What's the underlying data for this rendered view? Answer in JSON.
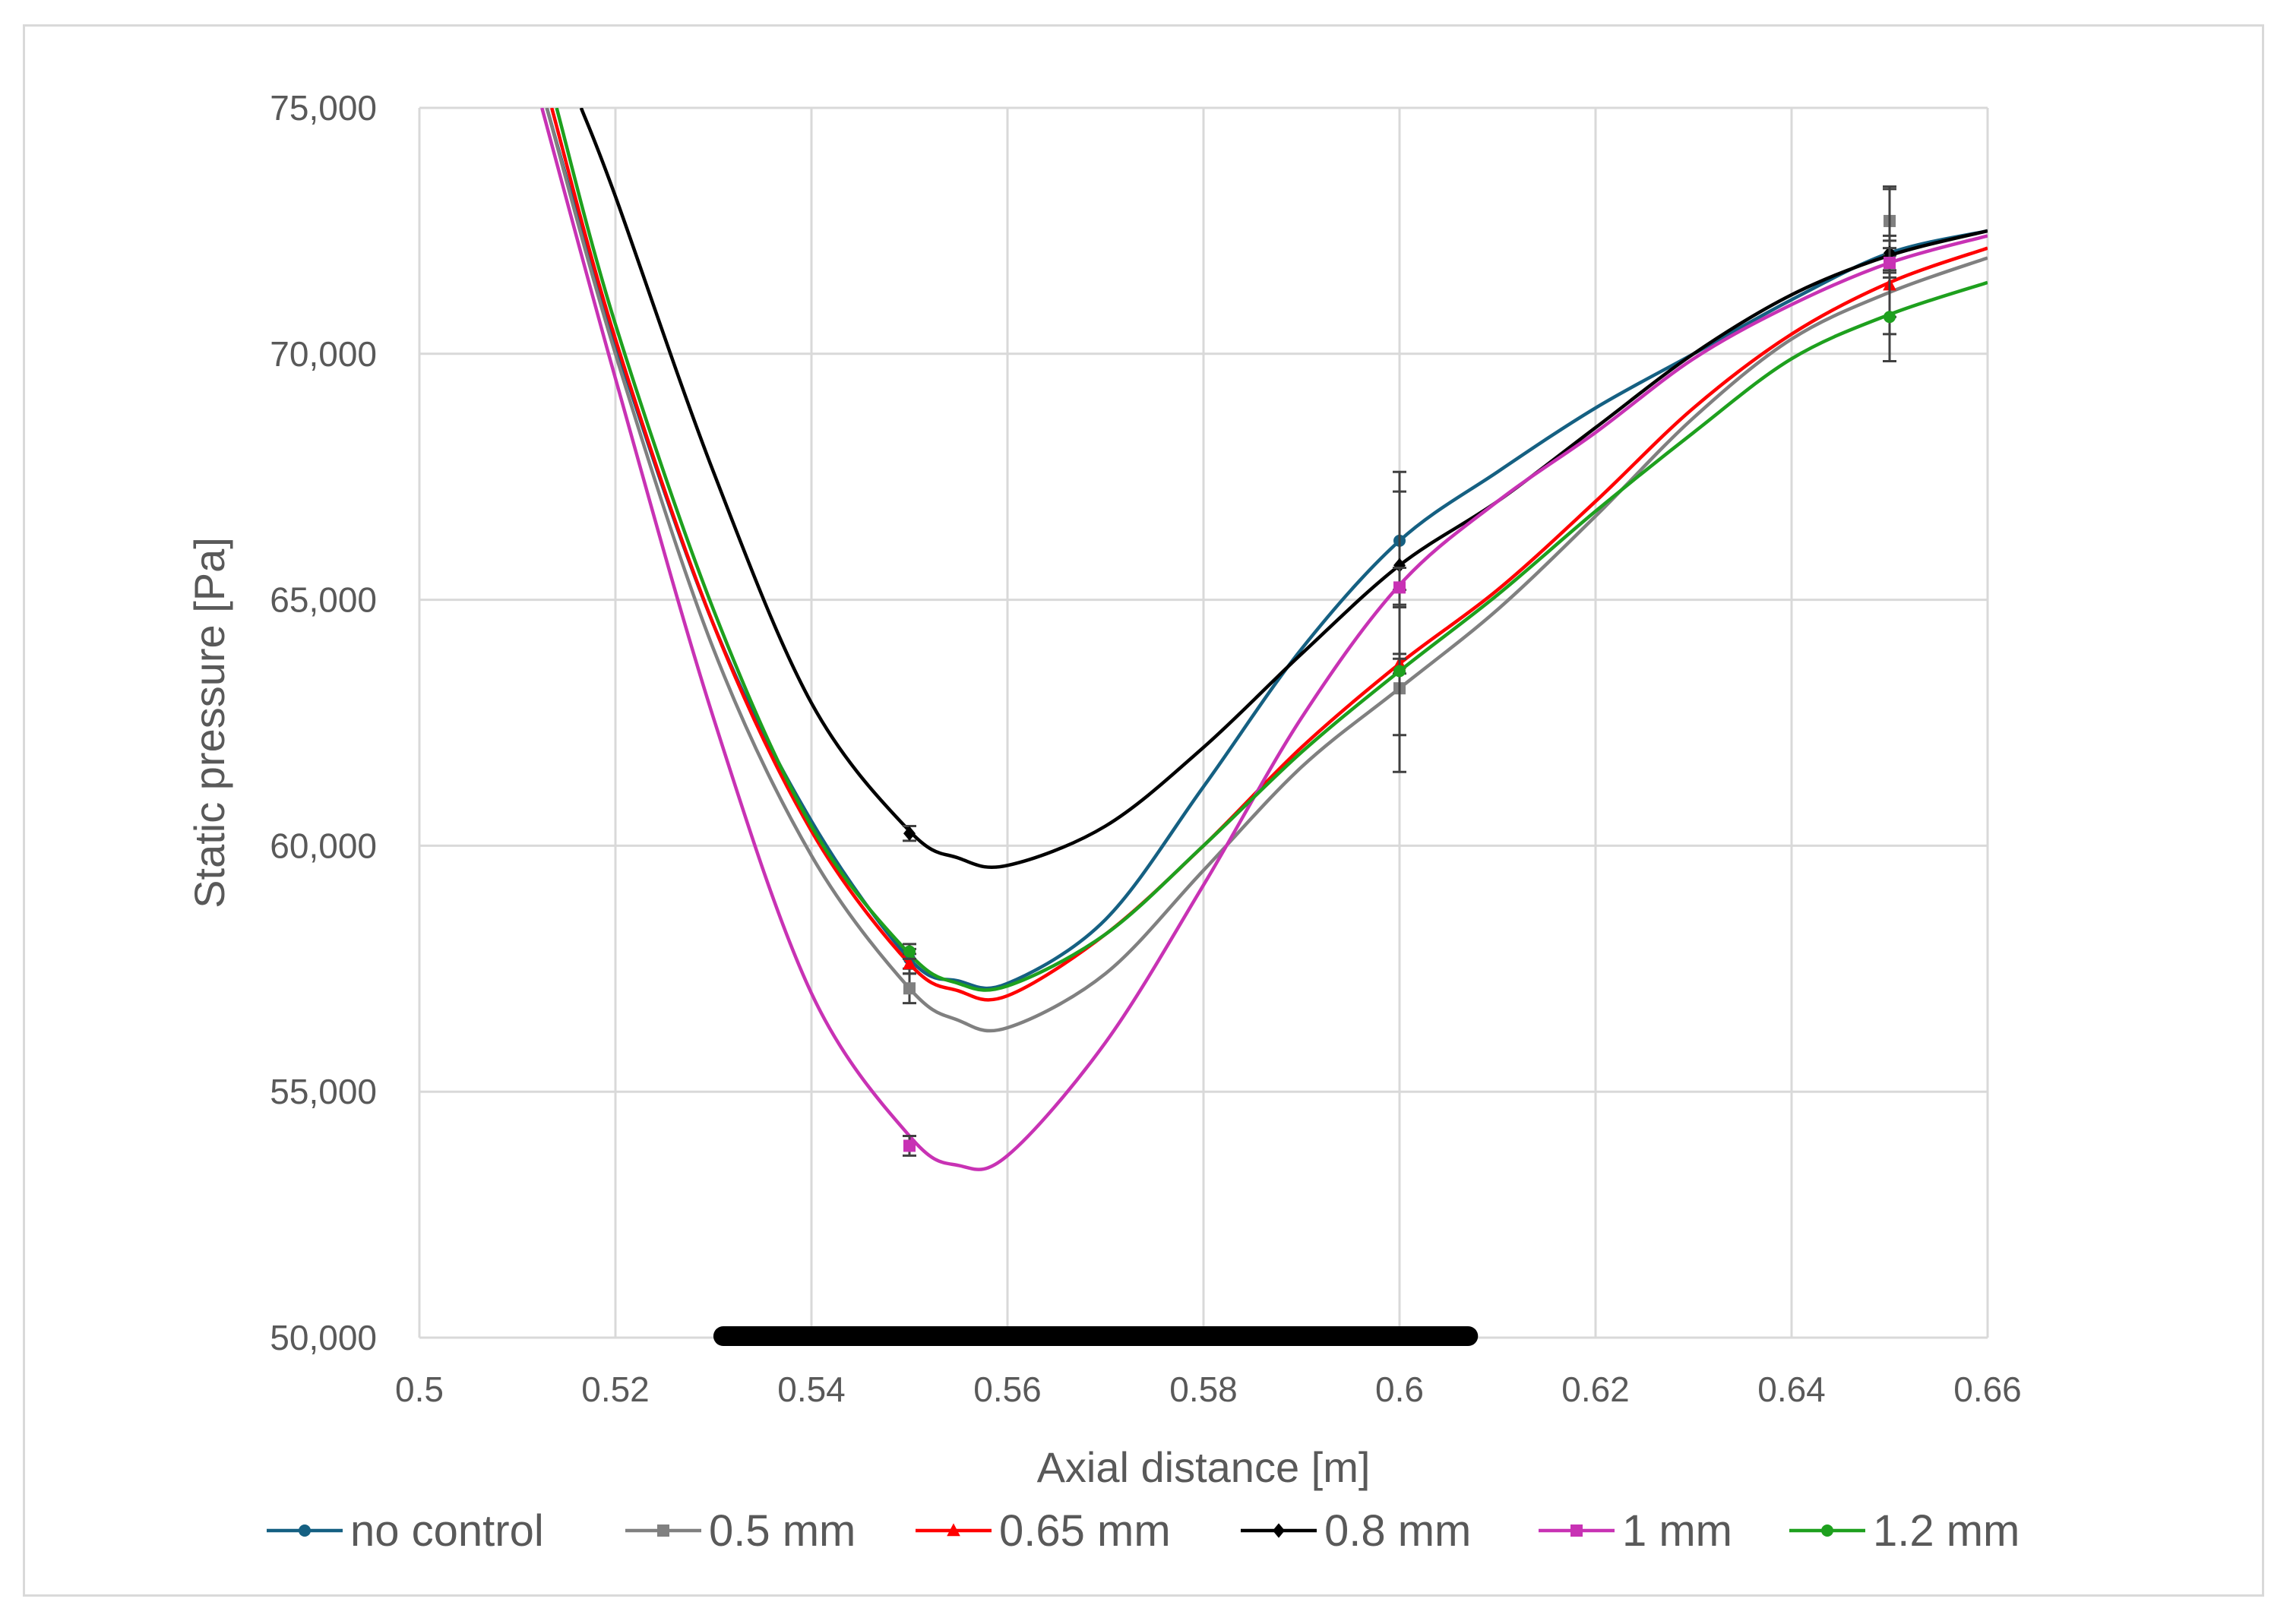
{
  "chart_data": {
    "type": "line",
    "xlabel": "Axial distance [m]",
    "ylabel": "Static pressure [Pa]",
    "xlim": [
      0.5,
      0.66
    ],
    "ylim": [
      50000,
      75000
    ],
    "grid": true,
    "legend_position": "bottom",
    "x_ticks": [
      0.5,
      0.52,
      0.54,
      0.56,
      0.58,
      0.6,
      0.62,
      0.64,
      0.66
    ],
    "x_tick_labels": [
      "0.5",
      "0.52",
      "0.54",
      "0.56",
      "0.58",
      "0.6",
      "0.62",
      "0.64",
      "0.66"
    ],
    "y_ticks": [
      50000,
      55000,
      60000,
      65000,
      70000,
      75000
    ],
    "y_tick_labels": [
      "50,000",
      "55,000",
      "60,000",
      "65,000",
      "70,000",
      "75,000"
    ],
    "highlight_band": {
      "x_start": 0.531,
      "x_end": 0.607,
      "y": 50000,
      "color": "#000000"
    },
    "series": [
      {
        "name": "no control",
        "color": "#156082",
        "marker": "circle",
        "curve": [
          [
            0.513,
            75000
          ],
          [
            0.52,
            70200
          ],
          [
            0.53,
            64500
          ],
          [
            0.54,
            60500
          ],
          [
            0.55,
            57700
          ],
          [
            0.555,
            57250
          ],
          [
            0.56,
            57200
          ],
          [
            0.57,
            58500
          ],
          [
            0.58,
            61200
          ],
          [
            0.59,
            64000
          ],
          [
            0.6,
            66200
          ],
          [
            0.61,
            67600
          ],
          [
            0.62,
            68900
          ],
          [
            0.63,
            70000
          ],
          [
            0.64,
            71100
          ],
          [
            0.65,
            72050
          ],
          [
            0.66,
            72500
          ]
        ],
        "points": [
          {
            "x": 0.55,
            "y": 57700,
            "err": 200
          },
          {
            "x": 0.6,
            "y": 66200,
            "err": 1000
          },
          {
            "x": 0.65,
            "y": 72000,
            "err": 300
          }
        ]
      },
      {
        "name": "0.5 mm",
        "color": "#808080",
        "marker": "square",
        "curve": [
          [
            0.513,
            75000
          ],
          [
            0.52,
            70000
          ],
          [
            0.53,
            64000
          ],
          [
            0.54,
            59800
          ],
          [
            0.55,
            57100
          ],
          [
            0.555,
            56450
          ],
          [
            0.56,
            56300
          ],
          [
            0.57,
            57400
          ],
          [
            0.58,
            59500
          ],
          [
            0.59,
            61600
          ],
          [
            0.6,
            63200
          ],
          [
            0.61,
            64800
          ],
          [
            0.62,
            66700
          ],
          [
            0.63,
            68700
          ],
          [
            0.64,
            70300
          ],
          [
            0.65,
            71250
          ],
          [
            0.66,
            71950
          ]
        ],
        "points": [
          {
            "x": 0.55,
            "y": 57100,
            "err": 300
          },
          {
            "x": 0.6,
            "y": 63200,
            "err": 1700
          },
          {
            "x": 0.65,
            "y": 72700,
            "err": 700
          }
        ]
      },
      {
        "name": "0.65 mm",
        "color": "#ff0000",
        "marker": "triangle",
        "curve": [
          [
            0.5135,
            75000
          ],
          [
            0.52,
            70300
          ],
          [
            0.53,
            64500
          ],
          [
            0.54,
            60300
          ],
          [
            0.55,
            57600
          ],
          [
            0.555,
            57050
          ],
          [
            0.56,
            56950
          ],
          [
            0.57,
            58200
          ],
          [
            0.58,
            60000
          ],
          [
            0.59,
            62000
          ],
          [
            0.6,
            63700
          ],
          [
            0.61,
            65200
          ],
          [
            0.62,
            67000
          ],
          [
            0.63,
            68900
          ],
          [
            0.64,
            70400
          ],
          [
            0.65,
            71450
          ],
          [
            0.66,
            72150
          ]
        ],
        "points": [
          {
            "x": 0.55,
            "y": 57600,
            "err": 200
          },
          {
            "x": 0.6,
            "y": 63700,
            "err": 200
          },
          {
            "x": 0.65,
            "y": 71400,
            "err": 1000
          }
        ]
      },
      {
        "name": "0.8 mm",
        "color": "#000000",
        "marker": "diamond",
        "curve": [
          [
            0.5165,
            75000
          ],
          [
            0.52,
            73200
          ],
          [
            0.53,
            67600
          ],
          [
            0.54,
            62900
          ],
          [
            0.55,
            60300
          ],
          [
            0.555,
            59750
          ],
          [
            0.56,
            59600
          ],
          [
            0.57,
            60400
          ],
          [
            0.58,
            62000
          ],
          [
            0.59,
            63900
          ],
          [
            0.6,
            65700
          ],
          [
            0.61,
            67000
          ],
          [
            0.62,
            68500
          ],
          [
            0.63,
            70000
          ],
          [
            0.64,
            71200
          ],
          [
            0.65,
            72000
          ],
          [
            0.66,
            72500
          ]
        ],
        "points": [
          {
            "x": 0.55,
            "y": 60250,
            "err": 150
          },
          {
            "x": 0.6,
            "y": 65700,
            "err": 1900
          },
          {
            "x": 0.65,
            "y": 72050,
            "err": 1300
          }
        ]
      },
      {
        "name": "1 mm",
        "color": "#c832b4",
        "marker": "square",
        "curve": [
          [
            0.5125,
            75000
          ],
          [
            0.52,
            69500
          ],
          [
            0.53,
            62600
          ],
          [
            0.54,
            57000
          ],
          [
            0.55,
            54100
          ],
          [
            0.555,
            53500
          ],
          [
            0.56,
            53700
          ],
          [
            0.57,
            56000
          ],
          [
            0.58,
            59200
          ],
          [
            0.59,
            62600
          ],
          [
            0.6,
            65300
          ],
          [
            0.61,
            67000
          ],
          [
            0.62,
            68400
          ],
          [
            0.63,
            69900
          ],
          [
            0.64,
            71000
          ],
          [
            0.65,
            71850
          ],
          [
            0.66,
            72400
          ]
        ],
        "points": [
          {
            "x": 0.55,
            "y": 53900,
            "err": 200
          },
          {
            "x": 0.6,
            "y": 65250,
            "err": 400
          },
          {
            "x": 0.65,
            "y": 71850,
            "err": 300
          }
        ]
      },
      {
        "name": "1.2 mm",
        "color": "#1ea01e",
        "marker": "circle",
        "curve": [
          [
            0.514,
            75000
          ],
          [
            0.52,
            70600
          ],
          [
            0.53,
            64800
          ],
          [
            0.54,
            60400
          ],
          [
            0.55,
            57800
          ],
          [
            0.555,
            57200
          ],
          [
            0.56,
            57150
          ],
          [
            0.57,
            58200
          ],
          [
            0.58,
            60000
          ],
          [
            0.59,
            61900
          ],
          [
            0.6,
            63550
          ],
          [
            0.61,
            65100
          ],
          [
            0.62,
            66800
          ],
          [
            0.63,
            68400
          ],
          [
            0.64,
            69900
          ],
          [
            0.65,
            70800
          ],
          [
            0.66,
            71450
          ]
        ],
        "points": [
          {
            "x": 0.55,
            "y": 57850,
            "err": 150
          },
          {
            "x": 0.6,
            "y": 63550,
            "err": 1300
          },
          {
            "x": 0.65,
            "y": 70750,
            "err": 900
          }
        ]
      }
    ]
  }
}
